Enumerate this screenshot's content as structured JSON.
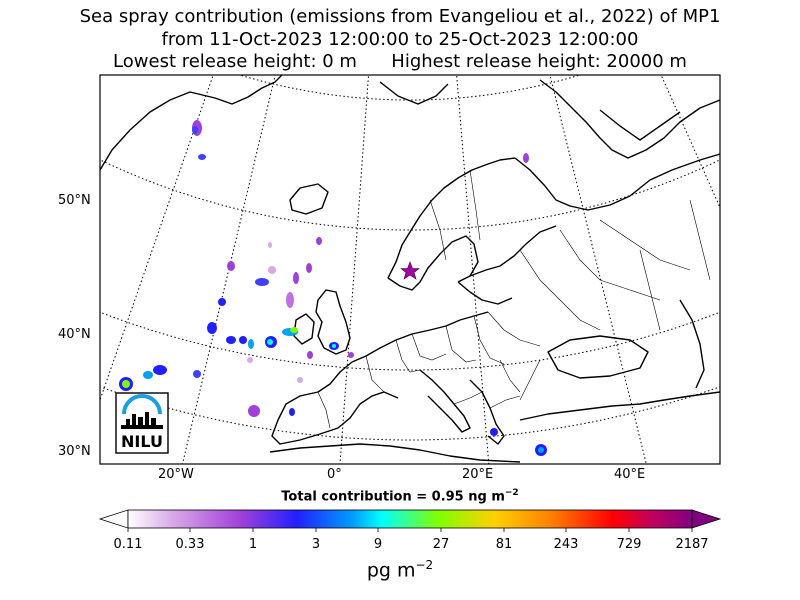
{
  "title": {
    "line1": "Sea spray contribution (emissions from Evangeliou et al., 2022) of MP1",
    "line2": "from 11-Oct-2023 12:00:00 to 25-Oct-2023 12:00:00",
    "line3_left": "Lowest release height: 0 m",
    "line3_right": "Highest release height: 20000 m"
  },
  "axes": {
    "lat_labels": [
      "50°N",
      "40°N",
      "30°N"
    ],
    "lon_labels": [
      "20°W",
      "0°",
      "20°E",
      "40°E"
    ]
  },
  "total_contribution": {
    "text": "Total contribution = 0.95 ng m",
    "exp": "−2"
  },
  "colorbar": {
    "ticks": [
      "0.11",
      "0.33",
      "1",
      "3",
      "9",
      "27",
      "81",
      "243",
      "729",
      "2187"
    ],
    "colors": [
      "#ffffff",
      "#d8a8e8",
      "#a040d8",
      "#2020ff",
      "#00a0ff",
      "#00ffff",
      "#80ff00",
      "#ffd000",
      "#ff8000",
      "#ff0000",
      "#c00060",
      "#800080"
    ],
    "unit": "pg m",
    "unit_exp": "−2"
  },
  "logo": {
    "text": "NILU"
  },
  "release_marker": {
    "symbol": "star",
    "color": "#a000a0"
  }
}
